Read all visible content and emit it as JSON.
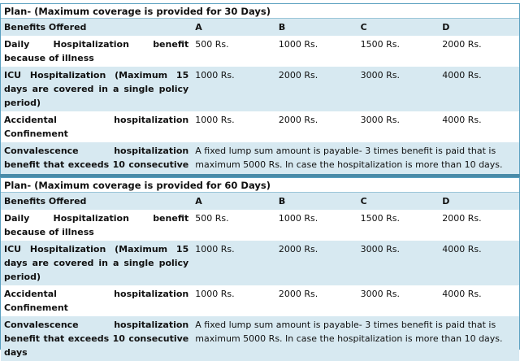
{
  "plans": [
    {
      "title": "Plan- (Maximum coverage is provided for 30 Days)",
      "header": [
        "Benefits Offered",
        "A",
        "B",
        "C",
        "D"
      ],
      "rows": [
        {
          "benefit": "Daily Hospitalization benefit because of illness",
          "values": [
            "500 Rs.",
            "1000 Rs.",
            "1500 Rs.",
            "2000 Rs."
          ]
        },
        {
          "benefit": "ICU Hospitalization (Maximum 15 days are covered in a single policy period)",
          "values": [
            "1000 Rs.",
            "2000 Rs.",
            "3000 Rs.",
            "4000 Rs."
          ]
        },
        {
          "benefit": "Accidental hospitalization Confinement",
          "values": [
            "1000 Rs.",
            "2000 Rs.",
            "3000 Rs.",
            "4000 Rs."
          ]
        }
      ],
      "convalescence": {
        "benefit": "Convalescence hospitalization benefit that exceeds 10 consecutive days",
        "text": "A fixed lump sum amount is payable- 3 times benefit is paid that is maximum 5000 Rs. In case the hospitalization is more than 10 days."
      }
    },
    {
      "title": "Plan- (Maximum coverage is provided for 60 Days)",
      "header": [
        "Benefits Offered",
        "A",
        "B",
        "C",
        "D"
      ],
      "rows": [
        {
          "benefit": "Daily Hospitalization benefit because of illness",
          "values": [
            "500 Rs.",
            "1000 Rs.",
            "1500 Rs.",
            "2000 Rs."
          ]
        },
        {
          "benefit": "ICU Hospitalization (Maximum 15 days are covered in a single policy period)",
          "values": [
            "1000 Rs.",
            "2000 Rs.",
            "3000 Rs.",
            "4000 Rs."
          ]
        },
        {
          "benefit": "Accidental hospitalization Confinement",
          "values": [
            "1000 Rs.",
            "2000 Rs.",
            "3000 Rs.",
            "4000 Rs."
          ]
        }
      ],
      "convalescence": {
        "benefit": "Convalescence hospitalization benefit that exceeds 10 consecutive days",
        "text": "A fixed lump sum amount is payable- 3 times benefit is paid that is maximum 5000 Rs. In case the hospitalization is more than 10 days."
      }
    }
  ],
  "colors": {
    "border": "#5aa0c0",
    "band": "#d7e9f1",
    "separator": "#4a8ba8"
  }
}
